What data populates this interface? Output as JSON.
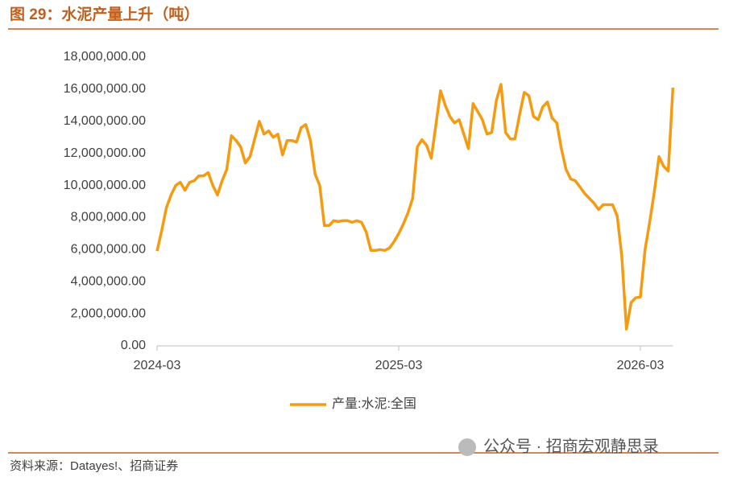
{
  "header": {
    "title": "图 29：水泥产量上升（吨）"
  },
  "chart_data": {
    "type": "line",
    "categories": [
      "2024-03",
      null,
      null,
      null,
      null,
      null,
      null,
      null,
      null,
      null,
      null,
      null,
      null,
      null,
      null,
      null,
      null,
      null,
      null,
      null,
      null,
      null,
      null,
      null,
      null,
      null,
      null,
      null,
      null,
      null,
      null,
      null,
      null,
      null,
      null,
      null,
      null,
      null,
      null,
      null,
      null,
      null,
      null,
      null,
      null,
      null,
      null,
      null,
      null,
      null,
      null,
      null,
      "2025-03",
      null,
      null,
      null,
      null,
      null,
      null,
      null,
      null,
      null,
      null,
      null,
      null,
      null,
      null,
      null,
      null,
      null,
      null,
      null,
      null,
      null,
      null,
      null,
      null,
      null,
      null,
      null,
      null,
      null,
      null,
      null,
      null,
      null,
      null,
      null,
      null,
      null,
      null,
      null,
      null,
      null,
      null,
      null,
      null,
      null,
      null,
      null,
      null,
      null,
      null,
      null,
      "2026-03",
      null,
      null,
      null,
      null,
      null,
      null,
      null
    ],
    "series": [
      {
        "name": "产量:水泥:全国",
        "color": "#f59b12",
        "values": [
          5900000,
          7200000,
          8600000,
          9400000,
          10000000,
          10200000,
          9700000,
          10200000,
          10300000,
          10600000,
          10600000,
          10800000,
          10000000,
          9400000,
          10300000,
          11000000,
          13100000,
          12800000,
          12400000,
          11400000,
          11800000,
          12900000,
          14000000,
          13200000,
          13400000,
          13000000,
          13200000,
          11900000,
          12800000,
          12800000,
          12700000,
          13600000,
          13800000,
          12800000,
          10700000,
          10000000,
          7500000,
          7500000,
          7800000,
          7750000,
          7800000,
          7800000,
          7700000,
          7800000,
          7700000,
          7100000,
          5950000,
          5950000,
          6000000,
          5950000,
          6100000,
          6500000,
          7000000,
          7600000,
          8300000,
          9200000,
          12400000,
          12850000,
          12500000,
          11700000,
          13800000,
          15900000,
          15000000,
          14300000,
          13900000,
          14100000,
          13200000,
          12300000,
          15100000,
          14600000,
          14100000,
          13200000,
          13300000,
          15300000,
          16300000,
          13300000,
          12900000,
          12900000,
          14400000,
          15800000,
          15600000,
          14300000,
          14100000,
          14900000,
          15200000,
          14200000,
          13900000,
          12300000,
          11000000,
          10400000,
          10300000,
          9900000,
          9500000,
          9200000,
          8900000,
          8500000,
          8800000,
          8800000,
          8800000,
          8100000,
          5600000,
          1050000,
          2700000,
          3000000,
          3050000,
          6000000,
          7700000,
          9600000,
          11800000,
          11200000,
          10900000,
          16100000
        ]
      }
    ],
    "ylim": [
      0,
      18000000
    ],
    "yticks": [
      {
        "value": 0,
        "label": "0.00"
      },
      {
        "value": 2000000,
        "label": "2,000,000.00"
      },
      {
        "value": 4000000,
        "label": "4,000,000.00"
      },
      {
        "value": 6000000,
        "label": "6,000,000.00"
      },
      {
        "value": 8000000,
        "label": "8,000,000.00"
      },
      {
        "value": 10000000,
        "label": "10,000,000.00"
      },
      {
        "value": 12000000,
        "label": "12,000,000.00"
      },
      {
        "value": 14000000,
        "label": "14,000,000.00"
      },
      {
        "value": 16000000,
        "label": "16,000,000.00"
      },
      {
        "value": 18000000,
        "label": "18,000,000.00"
      }
    ],
    "legend": "bottom"
  },
  "footer": {
    "source": "资料来源：Datayes!、招商证券",
    "watermark": "公众号 · 招商宏观静思录"
  }
}
